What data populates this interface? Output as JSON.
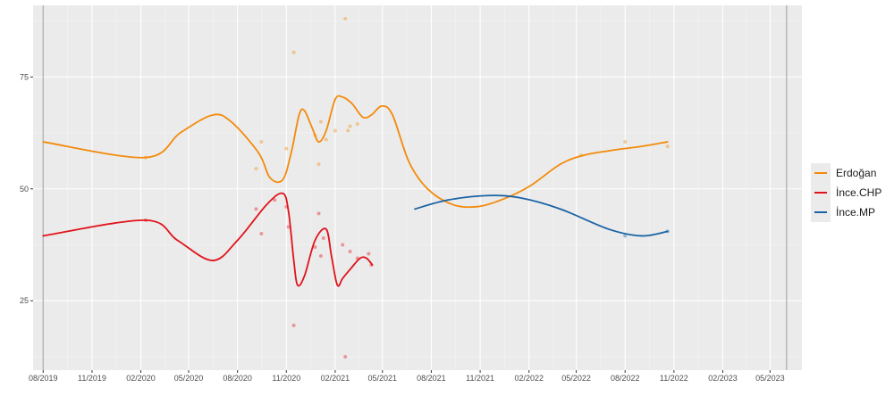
{
  "chart_data": {
    "type": "line",
    "title": "",
    "xlabel": "",
    "ylabel": "",
    "xlim": [
      "2019-07-13",
      "2023-06-30"
    ],
    "ylim": [
      9.5,
      91
    ],
    "grid": true,
    "legend_placement": "right",
    "x_ticks": [
      "2019-08-01",
      "2019-11-01",
      "2020-02-01",
      "2020-05-01",
      "2020-08-01",
      "2020-11-01",
      "2021-02-01",
      "2021-05-01",
      "2021-08-01",
      "2021-11-01",
      "2022-02-01",
      "2022-05-01",
      "2022-08-01",
      "2022-11-01",
      "2023-02-01",
      "2023-05-01"
    ],
    "x_tick_labels": [
      "08/2019",
      "11/2019",
      "02/2020",
      "05/2020",
      "08/2020",
      "11/2020",
      "02/2021",
      "05/2021",
      "08/2021",
      "11/2021",
      "02/2022",
      "05/2022",
      "08/2022",
      "11/2022",
      "02/2023",
      "05/2023"
    ],
    "y_ticks": [
      25,
      50,
      75
    ],
    "y_tick_labels": [
      "25",
      "50",
      "75"
    ],
    "vlines": [
      "2019-08-01",
      "2023-06-01"
    ],
    "series": [
      {
        "name": "Erdoğan",
        "color": "#F38A0B",
        "line": [
          [
            "2019-08-01",
            60.5
          ],
          [
            "2020-02-10",
            57.0
          ],
          [
            "2020-04-15",
            62.5
          ],
          [
            "2020-06-15",
            66.5
          ],
          [
            "2020-07-20",
            65.0
          ],
          [
            "2020-09-10",
            58.0
          ],
          [
            "2020-10-01",
            52.5
          ],
          [
            "2020-10-25",
            52.0
          ],
          [
            "2020-11-10",
            58.0
          ],
          [
            "2020-11-25",
            66.5
          ],
          [
            "2020-12-05",
            67.5
          ],
          [
            "2020-12-20",
            63.5
          ],
          [
            "2021-01-01",
            60.5
          ],
          [
            "2021-01-15",
            63.0
          ],
          [
            "2021-02-01",
            70.0
          ],
          [
            "2021-02-15",
            70.5
          ],
          [
            "2021-03-05",
            69.0
          ],
          [
            "2021-03-25",
            66.0
          ],
          [
            "2021-04-10",
            66.5
          ],
          [
            "2021-04-30",
            68.5
          ],
          [
            "2021-05-20",
            66.5
          ],
          [
            "2021-06-20",
            56.0
          ],
          [
            "2021-07-25",
            50.0
          ],
          [
            "2021-09-10",
            46.5
          ],
          [
            "2021-10-25",
            46.0
          ],
          [
            "2021-12-10",
            47.5
          ],
          [
            "2022-02-01",
            50.5
          ],
          [
            "2022-04-01",
            55.5
          ],
          [
            "2022-05-15",
            57.5
          ],
          [
            "2022-07-01",
            58.5
          ],
          [
            "2022-09-01",
            59.5
          ],
          [
            "2022-10-20",
            60.5
          ]
        ],
        "points": [
          [
            "2020-02-10",
            57.0
          ],
          [
            "2020-09-05",
            54.5
          ],
          [
            "2020-09-15",
            60.5
          ],
          [
            "2020-11-15",
            80.5
          ],
          [
            "2020-11-01",
            59.0
          ],
          [
            "2020-12-25",
            62.0
          ],
          [
            "2021-01-01",
            55.5
          ],
          [
            "2021-01-05",
            65.0
          ],
          [
            "2021-01-15",
            61.0
          ],
          [
            "2021-02-01",
            63.0
          ],
          [
            "2021-02-20",
            88.0
          ],
          [
            "2021-02-25",
            63.0
          ],
          [
            "2021-03-01",
            64.0
          ],
          [
            "2021-03-15",
            64.5
          ],
          [
            "2022-05-10",
            57.5
          ],
          [
            "2022-08-01",
            60.5
          ],
          [
            "2022-10-20",
            59.5
          ]
        ]
      },
      {
        "name": "İnce.CHP",
        "color": "#E0131A",
        "line": [
          [
            "2019-08-01",
            39.5
          ],
          [
            "2020-02-10",
            43.0
          ],
          [
            "2020-04-10",
            38.5
          ],
          [
            "2020-06-15",
            34.0
          ],
          [
            "2020-08-01",
            38.5
          ],
          [
            "2020-09-25",
            46.5
          ],
          [
            "2020-10-25",
            49.0
          ],
          [
            "2020-11-05",
            45.0
          ],
          [
            "2020-11-15",
            34.0
          ],
          [
            "2020-11-22",
            28.5
          ],
          [
            "2020-12-05",
            30.5
          ],
          [
            "2020-12-25",
            38.5
          ],
          [
            "2021-01-15",
            41.0
          ],
          [
            "2021-01-25",
            35.0
          ],
          [
            "2021-02-05",
            28.5
          ],
          [
            "2021-02-15",
            30.0
          ],
          [
            "2021-03-01",
            32.0
          ],
          [
            "2021-03-20",
            34.5
          ],
          [
            "2021-04-01",
            34.5
          ],
          [
            "2021-04-12",
            33.0
          ]
        ],
        "points": [
          [
            "2020-02-10",
            43.0
          ],
          [
            "2020-09-05",
            45.5
          ],
          [
            "2020-09-15",
            40.0
          ],
          [
            "2020-10-10",
            47.5
          ],
          [
            "2020-11-01",
            46.0
          ],
          [
            "2020-11-05",
            41.5
          ],
          [
            "2020-11-15",
            19.5
          ],
          [
            "2020-12-25",
            37.0
          ],
          [
            "2021-01-01",
            44.5
          ],
          [
            "2021-01-05",
            35.0
          ],
          [
            "2021-01-10",
            39.0
          ],
          [
            "2021-02-15",
            37.5
          ],
          [
            "2021-02-20",
            12.5
          ],
          [
            "2021-03-01",
            36.0
          ],
          [
            "2021-03-15",
            34.5
          ],
          [
            "2021-04-05",
            35.5
          ],
          [
            "2021-04-10",
            33.0
          ]
        ]
      },
      {
        "name": "İnce.MP",
        "color": "#1A63A5",
        "line": [
          [
            "2021-07-01",
            45.5
          ],
          [
            "2021-09-01",
            47.5
          ],
          [
            "2021-11-15",
            48.5
          ],
          [
            "2022-01-15",
            48.0
          ],
          [
            "2022-04-01",
            45.5
          ],
          [
            "2022-07-01",
            41.0
          ],
          [
            "2022-09-01",
            39.5
          ],
          [
            "2022-10-20",
            40.5
          ]
        ],
        "points": [
          [
            "2022-08-01",
            39.5
          ],
          [
            "2022-10-20",
            40.5
          ]
        ]
      }
    ]
  }
}
